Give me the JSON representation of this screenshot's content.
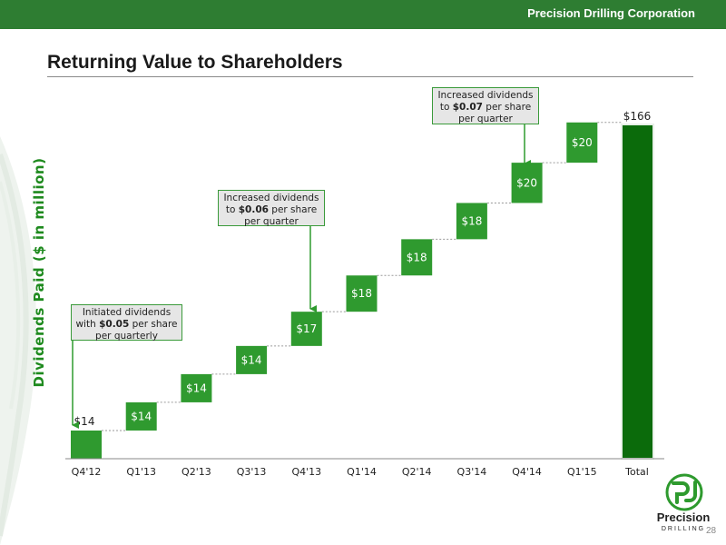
{
  "header": {
    "company": "Precision Drilling Corporation",
    "bar_color": "#2e7d32"
  },
  "slide": {
    "title": "Returning Value to Shareholders",
    "page_number": "28"
  },
  "callouts": [
    {
      "before": "Initiated dividends with ",
      "bold": "$0.05",
      "after": " per share per quarterly"
    },
    {
      "before": "Increased dividends to ",
      "bold": "$0.06",
      "after": " per share per quarter"
    },
    {
      "before": "Increased dividends to ",
      "bold": "$0.07",
      "after": " per share per quarter"
    }
  ],
  "logo": {
    "name": "Precision",
    "sub": "DRILLING",
    "icon": "pd-logo-icon"
  },
  "chart_data": {
    "type": "bar",
    "subtype": "waterfall",
    "title": "",
    "xlabel": "",
    "ylabel": "Dividends Paid ($ in million)",
    "categories": [
      "Q4'12",
      "Q1'13",
      "Q2'13",
      "Q3'13",
      "Q4'13",
      "Q1'14",
      "Q2'14",
      "Q3'14",
      "Q4'14",
      "Q1'15",
      "Total"
    ],
    "values": [
      14,
      14,
      14,
      14,
      17,
      18,
      18,
      18,
      20,
      20,
      166
    ],
    "labels": [
      "$14",
      "$14",
      "$14",
      "$14",
      "$17",
      "$18",
      "$18",
      "$18",
      "$20",
      "$20",
      "$166"
    ],
    "ylim": [
      0,
      166
    ],
    "grid": false,
    "colors": {
      "increment": "#2f9a2f",
      "total": "#0b6b0b",
      "first": "#2f9a2f"
    }
  }
}
